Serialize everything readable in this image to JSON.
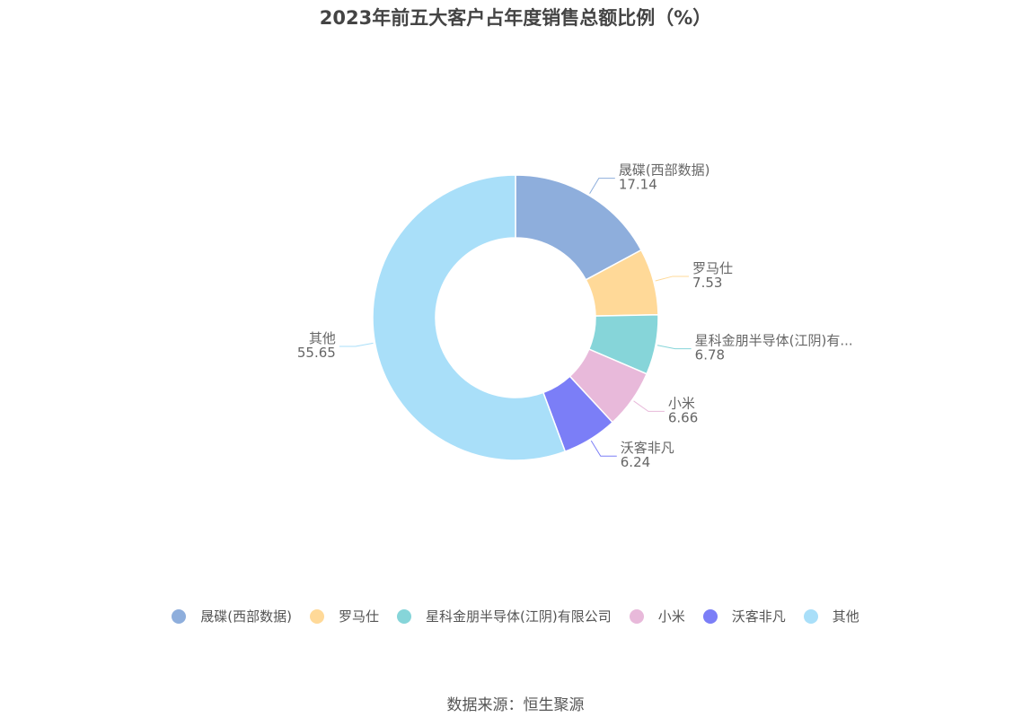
{
  "title": "2023年前五大客户占年度销售总额比例（%）",
  "source": "数据来源：恒生聚源",
  "chart_data": {
    "type": "pie",
    "variant": "donut",
    "title": "2023年前五大客户占年度销售总额比例（%）",
    "legend_position": "bottom",
    "slices": [
      {
        "name": "晟碟(西部数据)",
        "label": "晟碟(西部数据)",
        "value": 17.14,
        "color": "#8eaedc"
      },
      {
        "name": "罗马仕",
        "label": "罗马仕",
        "value": 7.53,
        "color": "#ffd998"
      },
      {
        "name": "星科金朋半导体(江阴)有限公司",
        "label": "星科金朋半导体(江阴)有...",
        "value": 6.78,
        "color": "#86d5d9"
      },
      {
        "name": "小米",
        "label": "小米",
        "value": 6.66,
        "color": "#e8b9da"
      },
      {
        "name": "沃客非凡",
        "label": "沃客非凡",
        "value": 6.24,
        "color": "#7b7ef7"
      },
      {
        "name": "其他",
        "label": "其他",
        "value": 55.65,
        "color": "#a9dff9"
      }
    ]
  }
}
